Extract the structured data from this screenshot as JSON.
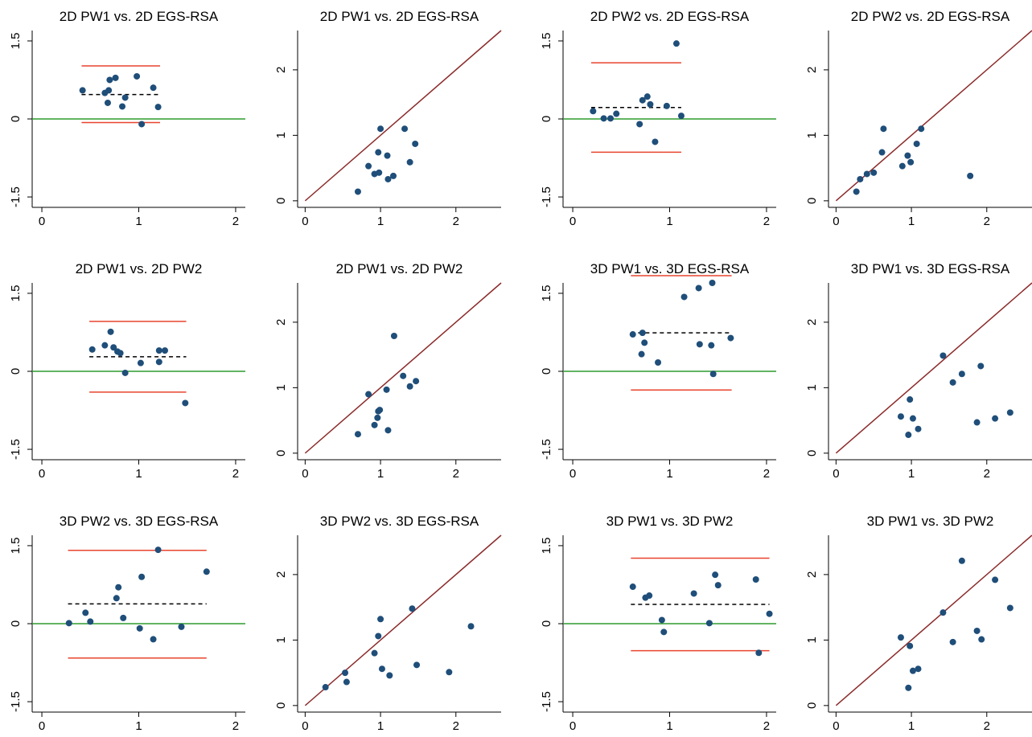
{
  "colors": {
    "point": "#1f4e79",
    "zero_line": "#2e9b2e",
    "limit_line": "#e8442e",
    "mean_line": "#000000",
    "identity_line": "#8b2a2a",
    "axis": "#000000"
  },
  "chart_data": [
    {
      "type": "scatter",
      "kind": "bland-altman",
      "title": "2D PW1 vs. 2D EGS-RSA",
      "xlim": [
        -0.1,
        2.1
      ],
      "ylim": [
        -1.7,
        1.7
      ],
      "xticks": [
        0,
        1,
        2
      ],
      "xtick_labels": [
        "0",
        "1",
        "2"
      ],
      "yticks": [
        -1.5,
        0,
        1.5
      ],
      "ytick_labels": [
        "-1.5",
        "0",
        "1.5"
      ],
      "mean_diff": 0.47,
      "upper_loa": 1.02,
      "lower_loa": -0.07,
      "line_x": [
        0.41,
        1.22
      ],
      "points": [
        [
          0.42,
          0.55
        ],
        [
          0.65,
          0.5
        ],
        [
          0.68,
          0.31
        ],
        [
          0.69,
          0.55
        ],
        [
          0.7,
          0.75
        ],
        [
          0.76,
          0.79
        ],
        [
          0.83,
          0.24
        ],
        [
          0.86,
          0.41
        ],
        [
          0.98,
          0.82
        ],
        [
          1.03,
          -0.1
        ],
        [
          1.15,
          0.6
        ],
        [
          1.2,
          0.23
        ]
      ]
    },
    {
      "type": "scatter",
      "kind": "identity",
      "title": "2D PW1 vs. 2D EGS-RSA",
      "xlim": [
        -0.1,
        2.6
      ],
      "ylim": [
        -0.1,
        2.6
      ],
      "xticks": [
        0,
        1,
        2
      ],
      "xtick_labels": [
        "0",
        "1",
        "2"
      ],
      "yticks": [
        0,
        1,
        2
      ],
      "ytick_labels": [
        "0",
        "1",
        "2"
      ],
      "points": [
        [
          0.7,
          0.14
        ],
        [
          0.84,
          0.53
        ],
        [
          0.92,
          0.41
        ],
        [
          0.97,
          0.74
        ],
        [
          0.98,
          0.43
        ],
        [
          1.0,
          1.1
        ],
        [
          1.09,
          0.69
        ],
        [
          1.1,
          0.33
        ],
        [
          1.17,
          0.38
        ],
        [
          1.32,
          1.1
        ],
        [
          1.39,
          0.59
        ],
        [
          1.46,
          0.87
        ]
      ]
    },
    {
      "type": "scatter",
      "kind": "bland-altman",
      "title": "2D PW2 vs. 2D EGS-RSA",
      "xlim": [
        -0.1,
        2.1
      ],
      "ylim": [
        -1.7,
        1.7
      ],
      "xticks": [
        0,
        1,
        2
      ],
      "xtick_labels": [
        "0",
        "1",
        "2"
      ],
      "yticks": [
        -1.5,
        0,
        1.5
      ],
      "ytick_labels": [
        "-1.5",
        "0",
        "1.5"
      ],
      "mean_diff": 0.22,
      "upper_loa": 1.08,
      "lower_loa": -0.64,
      "line_x": [
        0.19,
        1.12
      ],
      "points": [
        [
          0.21,
          0.15
        ],
        [
          0.32,
          0.01
        ],
        [
          0.39,
          0.01
        ],
        [
          0.45,
          0.1
        ],
        [
          0.69,
          -0.1
        ],
        [
          0.72,
          0.36
        ],
        [
          0.77,
          0.43
        ],
        [
          0.8,
          0.28
        ],
        [
          0.85,
          -0.44
        ],
        [
          0.97,
          0.25
        ],
        [
          1.07,
          1.45
        ],
        [
          1.12,
          0.06
        ]
      ]
    },
    {
      "type": "scatter",
      "kind": "identity",
      "title": "2D PW2 vs. 2D EGS-RSA",
      "xlim": [
        -0.1,
        2.6
      ],
      "ylim": [
        -0.1,
        2.6
      ],
      "xticks": [
        0,
        1,
        2
      ],
      "xtick_labels": [
        "0",
        "1",
        "2"
      ],
      "yticks": [
        0,
        1,
        2
      ],
      "ytick_labels": [
        "0",
        "1",
        "2"
      ],
      "points": [
        [
          0.27,
          0.14
        ],
        [
          0.32,
          0.33
        ],
        [
          0.41,
          0.41
        ],
        [
          0.5,
          0.43
        ],
        [
          0.61,
          0.74
        ],
        [
          0.63,
          1.1
        ],
        [
          0.88,
          0.53
        ],
        [
          0.95,
          0.69
        ],
        [
          0.99,
          0.59
        ],
        [
          1.07,
          0.87
        ],
        [
          1.13,
          1.1
        ],
        [
          1.78,
          0.38
        ]
      ]
    },
    {
      "type": "scatter",
      "kind": "bland-altman",
      "title": "2D PW1 vs. 2D PW2",
      "xlim": [
        -0.1,
        2.1
      ],
      "ylim": [
        -1.7,
        1.7
      ],
      "xticks": [
        0,
        1,
        2
      ],
      "xtick_labels": [
        "0",
        "1",
        "2"
      ],
      "yticks": [
        -1.5,
        0,
        1.5
      ],
      "ytick_labels": [
        "-1.5",
        "0",
        "1.5"
      ],
      "mean_diff": 0.28,
      "upper_loa": 0.96,
      "lower_loa": -0.4,
      "line_x": [
        0.49,
        1.49
      ],
      "points": [
        [
          0.52,
          0.42
        ],
        [
          0.65,
          0.5
        ],
        [
          0.71,
          0.76
        ],
        [
          0.74,
          0.46
        ],
        [
          0.78,
          0.38
        ],
        [
          0.81,
          0.35
        ],
        [
          0.86,
          -0.03
        ],
        [
          1.02,
          0.16
        ],
        [
          1.21,
          0.4
        ],
        [
          1.21,
          0.18
        ],
        [
          1.27,
          0.4
        ],
        [
          1.48,
          -0.61
        ]
      ]
    },
    {
      "type": "scatter",
      "kind": "identity",
      "title": "2D PW1 vs. 2D PW2",
      "xlim": [
        -0.1,
        2.6
      ],
      "ylim": [
        -0.1,
        2.6
      ],
      "xticks": [
        0,
        1,
        2
      ],
      "xtick_labels": [
        "0",
        "1",
        "2"
      ],
      "yticks": [
        0,
        1,
        2
      ],
      "ytick_labels": [
        "0",
        "1",
        "2"
      ],
      "points": [
        [
          0.7,
          0.29
        ],
        [
          0.84,
          0.9
        ],
        [
          0.92,
          0.43
        ],
        [
          0.96,
          0.54
        ],
        [
          0.97,
          0.64
        ],
        [
          0.99,
          0.66
        ],
        [
          1.08,
          0.97
        ],
        [
          1.1,
          0.35
        ],
        [
          1.18,
          1.79
        ],
        [
          1.3,
          1.18
        ],
        [
          1.39,
          1.02
        ],
        [
          1.47,
          1.1
        ]
      ]
    },
    {
      "type": "scatter",
      "kind": "bland-altman",
      "title": "3D PW1 vs. 3D EGS-RSA",
      "xlim": [
        -0.1,
        2.1
      ],
      "ylim": [
        -1.7,
        1.7
      ],
      "xticks": [
        0,
        1,
        2
      ],
      "xtick_labels": [
        "0",
        "1",
        "2"
      ],
      "yticks": [
        -1.5,
        0,
        1.5
      ],
      "ytick_labels": [
        "-1.5",
        "0",
        "1.5"
      ],
      "mean_diff": 0.74,
      "upper_loa": 1.84,
      "lower_loa": -0.36,
      "line_x": [
        0.6,
        1.64
      ],
      "points": [
        [
          0.62,
          0.71
        ],
        [
          0.71,
          0.33
        ],
        [
          0.72,
          0.74
        ],
        [
          0.74,
          0.55
        ],
        [
          0.88,
          0.17
        ],
        [
          1.15,
          1.43
        ],
        [
          1.3,
          1.6
        ],
        [
          1.31,
          0.52
        ],
        [
          1.43,
          0.5
        ],
        [
          1.44,
          1.7
        ],
        [
          1.45,
          -0.05
        ],
        [
          1.63,
          0.64
        ]
      ]
    },
    {
      "type": "scatter",
      "kind": "identity",
      "title": "3D PW1 vs. 3D EGS-RSA",
      "xlim": [
        -0.1,
        2.6
      ],
      "ylim": [
        -0.1,
        2.6
      ],
      "xticks": [
        0,
        1,
        2
      ],
      "xtick_labels": [
        "0",
        "1",
        "2"
      ],
      "yticks": [
        0,
        1,
        2
      ],
      "ytick_labels": [
        "0",
        "1",
        "2"
      ],
      "points": [
        [
          0.86,
          0.56
        ],
        [
          0.96,
          0.28
        ],
        [
          0.98,
          0.82
        ],
        [
          1.02,
          0.53
        ],
        [
          1.09,
          0.37
        ],
        [
          1.42,
          1.49
        ],
        [
          1.55,
          1.08
        ],
        [
          1.67,
          1.21
        ],
        [
          1.87,
          0.47
        ],
        [
          1.92,
          1.33
        ],
        [
          2.11,
          0.53
        ],
        [
          2.31,
          0.62
        ]
      ]
    },
    {
      "type": "scatter",
      "kind": "bland-altman",
      "title": "3D PW2 vs. 3D EGS-RSA",
      "xlim": [
        -0.1,
        2.1
      ],
      "ylim": [
        -1.7,
        1.7
      ],
      "xticks": [
        0,
        1,
        2
      ],
      "xtick_labels": [
        "0",
        "1",
        "2"
      ],
      "yticks": [
        -1.5,
        0,
        1.5
      ],
      "ytick_labels": [
        "-1.5",
        "0",
        "1.5"
      ],
      "mean_diff": 0.38,
      "upper_loa": 1.41,
      "lower_loa": -0.66,
      "line_x": [
        0.27,
        1.7
      ],
      "points": [
        [
          0.28,
          0.01
        ],
        [
          0.45,
          0.21
        ],
        [
          0.5,
          0.04
        ],
        [
          0.77,
          0.49
        ],
        [
          0.79,
          0.7
        ],
        [
          0.84,
          0.11
        ],
        [
          1.01,
          -0.09
        ],
        [
          1.03,
          0.9
        ],
        [
          1.15,
          -0.3
        ],
        [
          1.2,
          1.42
        ],
        [
          1.44,
          -0.06
        ],
        [
          1.7,
          1.0
        ]
      ]
    },
    {
      "type": "scatter",
      "kind": "identity",
      "title": "3D PW2 vs. 3D EGS-RSA",
      "xlim": [
        -0.1,
        2.6
      ],
      "ylim": [
        -0.1,
        2.6
      ],
      "xticks": [
        0,
        1,
        2
      ],
      "xtick_labels": [
        "0",
        "1",
        "2"
      ],
      "yticks": [
        0,
        1,
        2
      ],
      "ytick_labels": [
        "0",
        "1",
        "2"
      ],
      "points": [
        [
          0.27,
          0.28
        ],
        [
          0.53,
          0.5
        ],
        [
          0.55,
          0.36
        ],
        [
          0.92,
          0.8
        ],
        [
          0.97,
          1.06
        ],
        [
          1.0,
          1.32
        ],
        [
          1.02,
          0.56
        ],
        [
          1.12,
          0.46
        ],
        [
          1.42,
          1.48
        ],
        [
          1.48,
          0.62
        ],
        [
          1.91,
          0.51
        ],
        [
          2.2,
          1.21
        ]
      ]
    },
    {
      "type": "scatter",
      "kind": "bland-altman",
      "title": "3D PW1 vs. 3D PW2",
      "xlim": [
        -0.1,
        2.1
      ],
      "ylim": [
        -1.7,
        1.7
      ],
      "xticks": [
        0,
        1,
        2
      ],
      "xtick_labels": [
        "0",
        "1",
        "2"
      ],
      "yticks": [
        -1.5,
        0,
        1.5
      ],
      "ytick_labels": [
        "-1.5",
        "0",
        "1.5"
      ],
      "mean_diff": 0.37,
      "upper_loa": 1.26,
      "lower_loa": -0.52,
      "line_x": [
        0.6,
        2.03
      ],
      "points": [
        [
          0.62,
          0.71
        ],
        [
          0.75,
          0.5
        ],
        [
          0.79,
          0.54
        ],
        [
          0.92,
          0.07
        ],
        [
          0.94,
          -0.16
        ],
        [
          1.25,
          0.58
        ],
        [
          1.41,
          0.01
        ],
        [
          1.47,
          0.94
        ],
        [
          1.5,
          0.74
        ],
        [
          1.89,
          0.85
        ],
        [
          1.92,
          -0.56
        ],
        [
          2.03,
          0.19
        ]
      ]
    },
    {
      "type": "scatter",
      "kind": "identity",
      "title": "3D PW1 vs. 3D PW2",
      "xlim": [
        -0.1,
        2.6
      ],
      "ylim": [
        -0.1,
        2.6
      ],
      "xticks": [
        0,
        1,
        2
      ],
      "xtick_labels": [
        "0",
        "1",
        "2"
      ],
      "yticks": [
        0,
        1,
        2
      ],
      "ytick_labels": [
        "0",
        "1",
        "2"
      ],
      "points": [
        [
          0.86,
          1.04
        ],
        [
          0.96,
          0.27
        ],
        [
          0.98,
          0.91
        ],
        [
          1.02,
          0.53
        ],
        [
          1.09,
          0.56
        ],
        [
          1.42,
          1.42
        ],
        [
          1.55,
          0.97
        ],
        [
          1.67,
          2.21
        ],
        [
          1.87,
          1.14
        ],
        [
          1.93,
          1.01
        ],
        [
          2.11,
          1.92
        ],
        [
          2.31,
          1.49
        ]
      ]
    }
  ]
}
